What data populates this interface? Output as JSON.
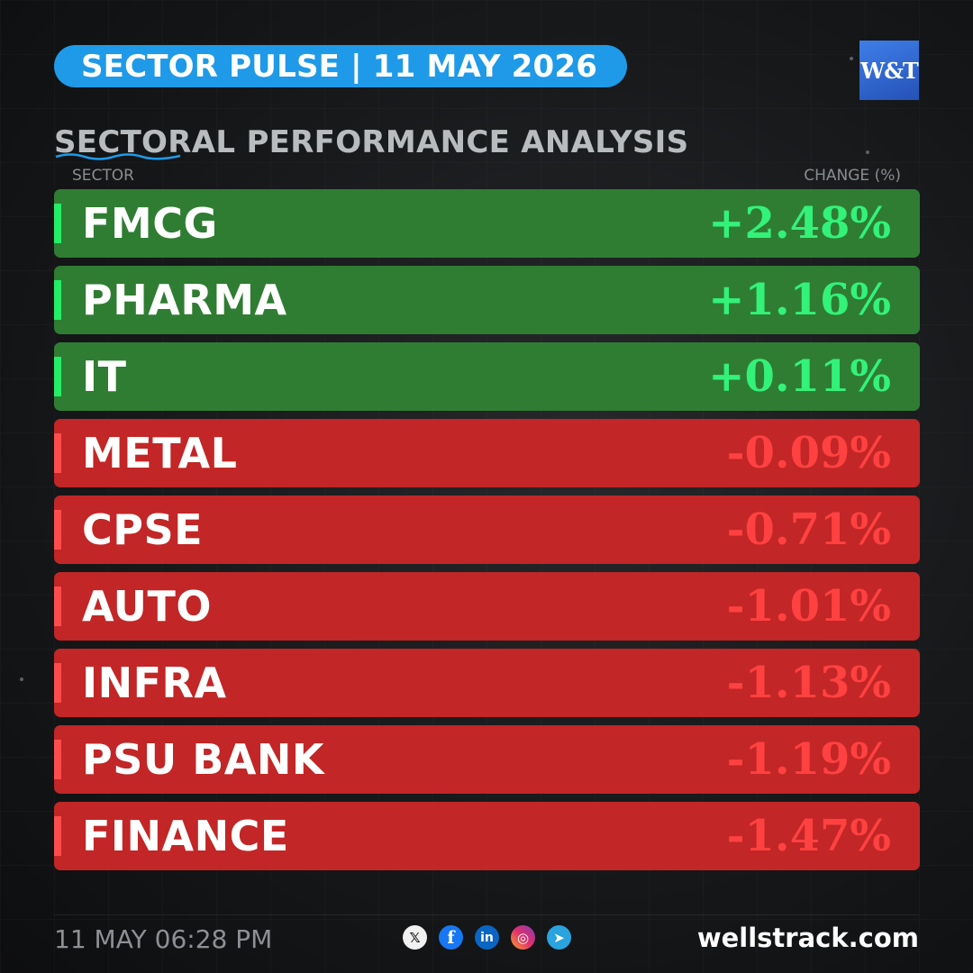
{
  "header": {
    "title": "SECTOR PULSE | 11 MAY 2026",
    "logo_text": "W&T",
    "logo_label": "WellsTrack logo",
    "accent": "#1e9ae8"
  },
  "section": {
    "title": "SECTORAL PERFORMANCE ANALYSIS",
    "col_sector": "SECTOR",
    "col_change": "CHANGE (%)"
  },
  "colors": {
    "positive_bg": "#2f7d32",
    "positive_text": "#33f27a",
    "negative_bg": "#c22626",
    "negative_text": "#ff4141"
  },
  "rows": [
    {
      "sector": "FMCG",
      "change": "+2.48%",
      "value": 2.48
    },
    {
      "sector": "PHARMA",
      "change": "+1.16%",
      "value": 1.16
    },
    {
      "sector": "IT",
      "change": "+0.11%",
      "value": 0.11
    },
    {
      "sector": "METAL",
      "change": "-0.09%",
      "value": -0.09
    },
    {
      "sector": "CPSE",
      "change": "-0.71%",
      "value": -0.71
    },
    {
      "sector": "AUTO",
      "change": "-1.01%",
      "value": -1.01
    },
    {
      "sector": "INFRA",
      "change": "-1.13%",
      "value": -1.13
    },
    {
      "sector": "PSU BANK",
      "change": "-1.19%",
      "value": -1.19
    },
    {
      "sector": "FINANCE",
      "change": "-1.47%",
      "value": -1.47
    }
  ],
  "footer": {
    "timestamp": "11 MAY 06:28 PM",
    "website": "wellstrack.com",
    "socials": [
      {
        "icon": "x-icon",
        "glyph": "𝕏"
      },
      {
        "icon": "facebook-icon",
        "glyph": "f"
      },
      {
        "icon": "linkedin-icon",
        "glyph": "in"
      },
      {
        "icon": "instagram-icon",
        "glyph": "◎"
      },
      {
        "icon": "telegram-icon",
        "glyph": "➤"
      }
    ]
  }
}
